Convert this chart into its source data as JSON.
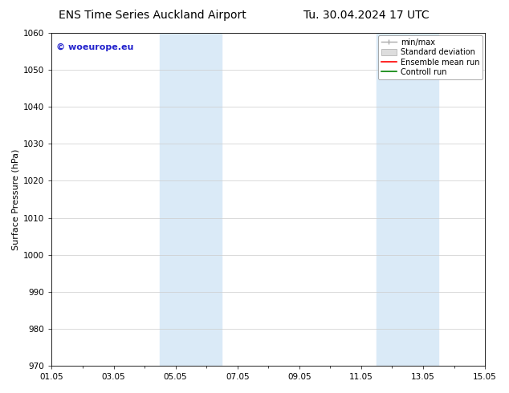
{
  "title_left": "ENS Time Series Auckland Airport",
  "title_right": "Tu. 30.04.2024 17 UTC",
  "ylabel": "Surface Pressure (hPa)",
  "ylim": [
    970,
    1060
  ],
  "yticks": [
    970,
    980,
    990,
    1000,
    1010,
    1020,
    1030,
    1040,
    1050,
    1060
  ],
  "xtick_labels": [
    "01.05",
    "03.05",
    "05.05",
    "07.05",
    "09.05",
    "11.05",
    "13.05",
    "15.05"
  ],
  "xtick_positions": [
    0,
    2,
    4,
    6,
    8,
    10,
    12,
    14
  ],
  "xlim": [
    0,
    14
  ],
  "shaded_bands": [
    {
      "x_start": 3.5,
      "x_end": 5.5
    },
    {
      "x_start": 10.5,
      "x_end": 12.5
    }
  ],
  "shaded_color": "#daeaf7",
  "background_color": "#ffffff",
  "watermark_text": "© woeurope.eu",
  "watermark_color": "#2222cc",
  "legend_items": [
    {
      "label": "min/max",
      "color": "#aaaaaa"
    },
    {
      "label": "Standard deviation",
      "color": "#cccccc"
    },
    {
      "label": "Ensemble mean run",
      "color": "#ff0000"
    },
    {
      "label": "Controll run",
      "color": "#008000"
    }
  ],
  "title_fontsize": 10,
  "axis_label_fontsize": 8,
  "tick_fontsize": 7.5,
  "watermark_fontsize": 8,
  "legend_fontsize": 7
}
